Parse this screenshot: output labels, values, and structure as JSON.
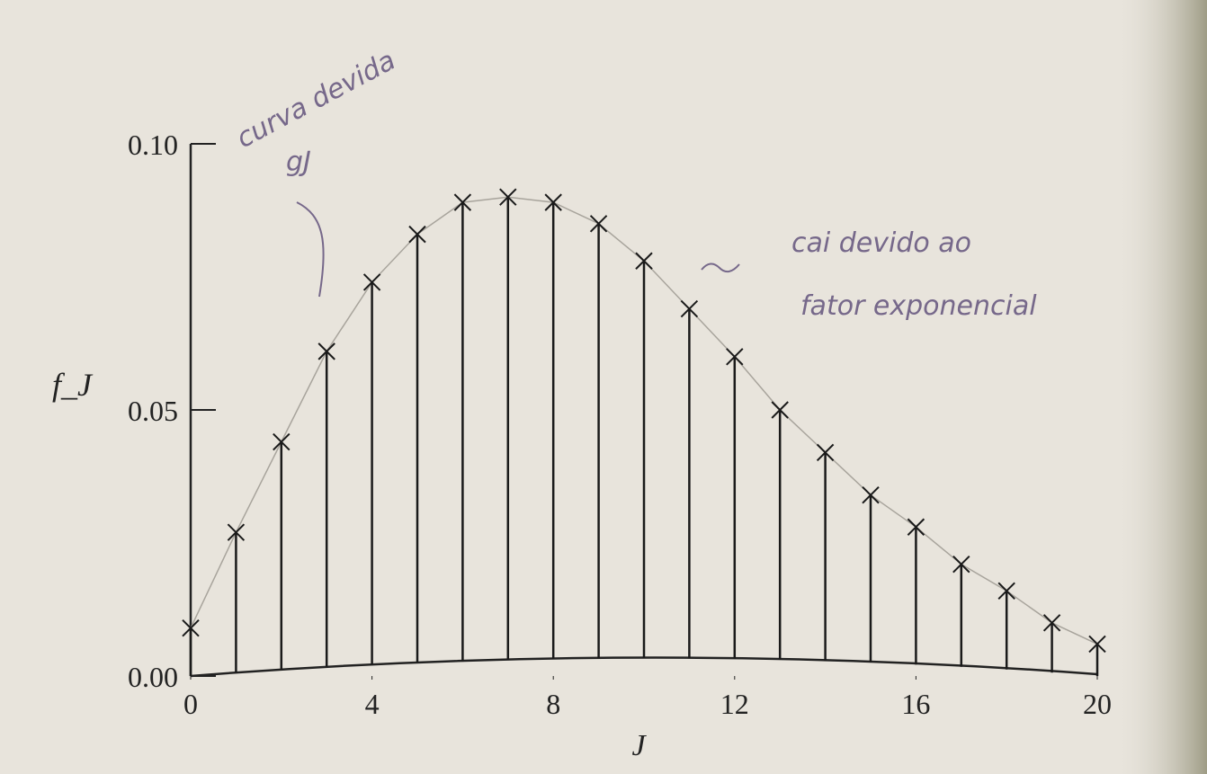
{
  "chart_data": {
    "type": "stem",
    "x_label": "J",
    "y_label": "f_J",
    "x": [
      0,
      1,
      2,
      3,
      4,
      5,
      6,
      7,
      8,
      9,
      10,
      11,
      12,
      13,
      14,
      15,
      16,
      17,
      18,
      19,
      20
    ],
    "values": [
      0.009,
      0.027,
      0.044,
      0.061,
      0.074,
      0.083,
      0.089,
      0.09,
      0.089,
      0.085,
      0.078,
      0.069,
      0.06,
      0.05,
      0.042,
      0.034,
      0.028,
      0.021,
      0.016,
      0.01,
      0.006
    ],
    "color": "#1a1a1a",
    "xlim": [
      0,
      20
    ],
    "xticks": [
      0,
      4,
      8,
      12,
      16,
      20
    ],
    "ylim": [
      0,
      0.1
    ],
    "yticks": [
      {
        "value": 0,
        "label": "0.00"
      },
      {
        "value": 0.05,
        "label": "0.05"
      },
      {
        "value": 0.1,
        "label": "0.10"
      }
    ],
    "annotations": [
      "curva devida",
      "gJ",
      "cai devido ao",
      "fator exponencial"
    ]
  }
}
